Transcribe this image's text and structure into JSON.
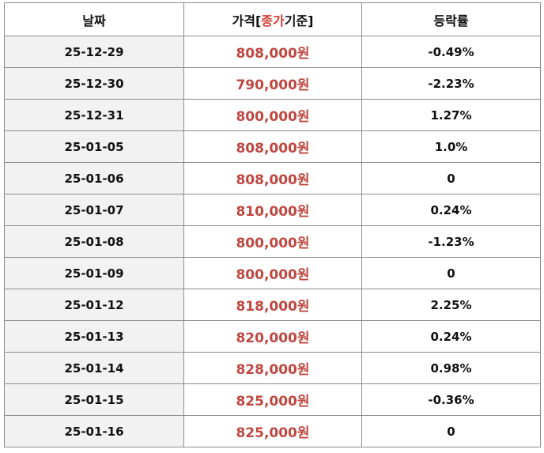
{
  "table": {
    "header": [
      "날짜",
      [
        "가격[",
        "종가",
        "기준]"
      ],
      "등락률"
    ],
    "rows": [
      [
        "25-12-29",
        "808,000원",
        "-0.49%"
      ],
      [
        "25-12-30",
        "790,000원",
        "-2.23%"
      ],
      [
        "25-12-31",
        "800,000원",
        "1.27%"
      ],
      [
        "25-01-05",
        "808,000원",
        "1.0%"
      ],
      [
        "25-01-06",
        "808,000원",
        "0"
      ],
      [
        "25-01-07",
        "810,000원",
        "0.24%"
      ],
      [
        "25-01-08",
        "800,000원",
        "-1.23%"
      ],
      [
        "25-01-09",
        "800,000원",
        "0"
      ],
      [
        "25-01-12",
        "818,000원",
        "2.25%"
      ],
      [
        "25-01-13",
        "820,000원",
        "0.24%"
      ],
      [
        "25-01-14",
        "828,000원",
        "0.98%"
      ],
      [
        "25-01-15",
        "825,000원",
        "-0.36%"
      ],
      [
        "25-01-16",
        "825,000원",
        "0"
      ]
    ]
  }
}
